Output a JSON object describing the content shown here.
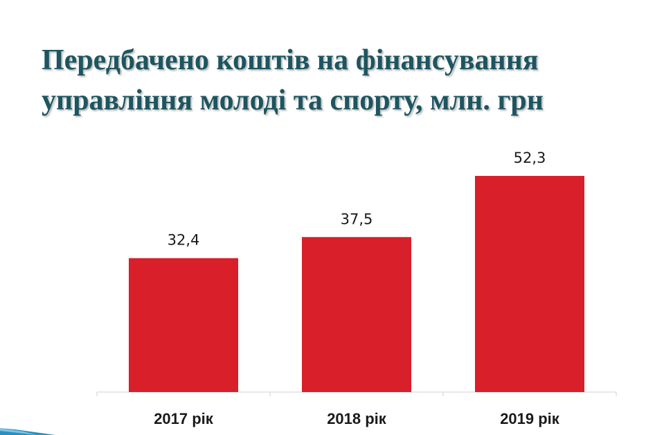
{
  "slide": {
    "title_line1": "Передбачено коштів на фінансування",
    "title_line2": "управління молоді та спорту, млн. грн"
  },
  "colors": {
    "title": "#1d5560",
    "bar": "#d81f2a",
    "axis": "#d0d0d0",
    "corner_decoration": "#2a8fc0"
  },
  "chart_data": {
    "type": "bar",
    "title": "Передбачено коштів на фінансування управління молоді та спорту, млн. грн",
    "categories": [
      "2017 рік",
      "2018 рік",
      "2019 рік"
    ],
    "values": [
      32.4,
      37.5,
      52.3
    ],
    "data_labels": [
      "32,4",
      "37,5",
      "52,3"
    ],
    "xlabel": "",
    "ylabel": "",
    "ylim": [
      0,
      60
    ],
    "grid": false,
    "legend": "none"
  }
}
